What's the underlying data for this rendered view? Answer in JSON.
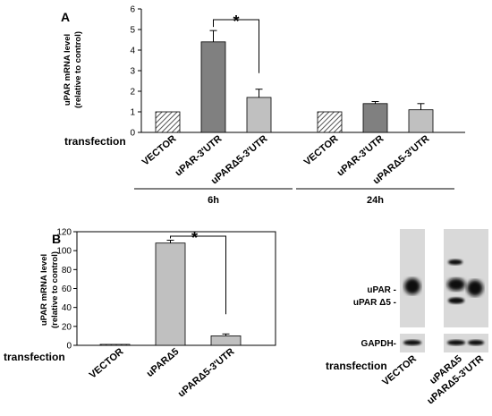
{
  "colors": {
    "vector_fill": "#ffffff",
    "vector_hatch": "#555555",
    "utr_fill": "#808080",
    "delta_fill": "#c0c0c0",
    "axis": "#000000",
    "gel_bg": "#d9d9d9",
    "band": "#111111"
  },
  "chart_data": [
    {
      "type": "bar",
      "panel_label": "A",
      "ylabel": "uPAR mRNA level (relative to control)",
      "ylim": [
        0,
        6
      ],
      "yticks": [
        "0",
        "1",
        "2",
        "3",
        "4",
        "5",
        "6"
      ],
      "row_label": "transfection",
      "groups": [
        {
          "label": "6h",
          "categories": [
            "VECTOR",
            "uPAR-3'UTR",
            "uPARΔ5-3'UTR"
          ],
          "values": [
            1.0,
            4.4,
            1.7
          ],
          "errors": [
            0,
            0.55,
            0.4
          ]
        },
        {
          "label": "24h",
          "categories": [
            "VECTOR",
            "uPAR-3'UTR",
            "uPARΔ5-3'UTR"
          ],
          "values": [
            1.0,
            1.4,
            1.1
          ],
          "errors": [
            0,
            0.1,
            0.3
          ]
        }
      ],
      "significance": {
        "label": "*",
        "between": [
          1,
          2
        ]
      }
    },
    {
      "type": "bar",
      "panel_label": "B",
      "ylabel": "uPAR mRNA level (relative to control)",
      "ylim": [
        0,
        120
      ],
      "yticks": [
        "0",
        "20",
        "40",
        "60",
        "80",
        "100",
        "120"
      ],
      "row_label": "transfection",
      "categories": [
        "VECTOR",
        "uPARΔ5",
        "uPARΔ5-3'UTR"
      ],
      "values": [
        1,
        108,
        10
      ],
      "errors": [
        0,
        3,
        2
      ],
      "significance": {
        "label": "*",
        "between": [
          1,
          2
        ]
      }
    }
  ],
  "blot": {
    "band_labels": [
      "uPAR -",
      "uPAR Δ5 -"
    ],
    "loading_label": "GAPDH-",
    "row_label": "transfection",
    "lanes": [
      "VECTOR",
      "uPARΔ5",
      "uPARΔ5-3'UTR"
    ]
  }
}
